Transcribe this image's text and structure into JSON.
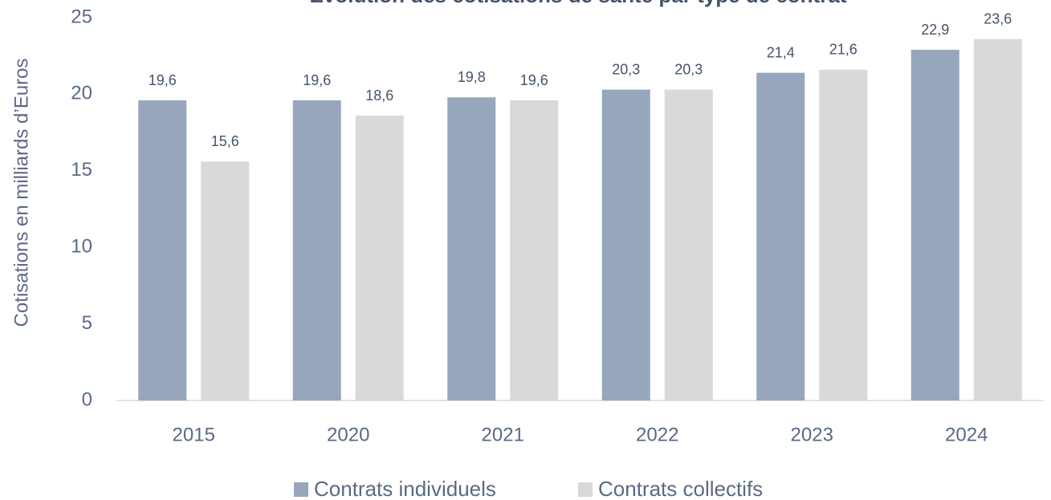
{
  "chart_data": {
    "type": "bar",
    "title": "Évolution des cotisations de santé par type de contrat",
    "y_label": "Cotisations en milliards d’Euros",
    "categories": [
      "2015",
      "2020",
      "2021",
      "2022",
      "2023",
      "2024"
    ],
    "series": [
      {
        "name": "Contrats individuels",
        "color": "#97a6bc",
        "values": [
          19.6,
          19.6,
          19.8,
          20.3,
          21.4,
          22.9
        ],
        "value_labels": [
          "19,6",
          "19,6",
          "19,8",
          "20,3",
          "21,4",
          "22,9"
        ]
      },
      {
        "name": "Contrats collectifs",
        "color": "#d9d9d9",
        "values": [
          15.6,
          18.6,
          19.6,
          20.3,
          21.6,
          23.6
        ],
        "value_labels": [
          "15,6",
          "18,6",
          "19,6",
          "20,3",
          "21,6",
          "23,6"
        ]
      }
    ],
    "ylim": [
      0,
      25
    ],
    "yticks": [
      0,
      5,
      10,
      15,
      20,
      25
    ],
    "grid": false,
    "legend": "bottom"
  }
}
